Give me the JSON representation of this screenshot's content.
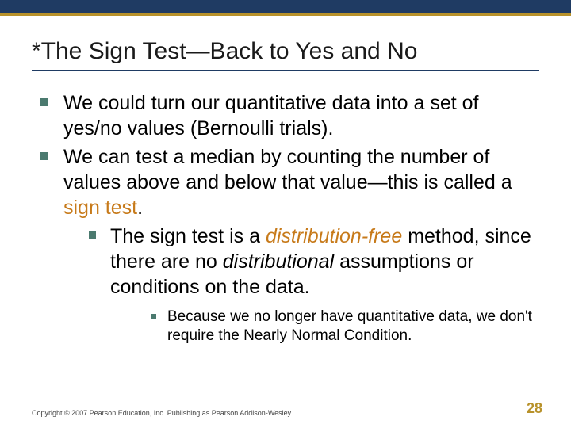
{
  "colors": {
    "topbar_bg": "#1f3b63",
    "topbar_accent": "#b8922b",
    "bullet_square": "#4b7a6f",
    "highlight": "#c77a1a",
    "pagenum": "#b8922b",
    "title_rule": "#1f3b63"
  },
  "title": "*The Sign Test—Back to Yes and No",
  "bullets": {
    "b1a": "We could turn our quantitative data into a set of yes/no values (Bernoulli trials).",
    "b1b_pre": "We can test a median by counting the number of values above and below that value—this is called a ",
    "b1b_hl": "sign test",
    "b1b_post": ".",
    "b2_pre": "The sign test is a ",
    "b2_hl": "distribution-free",
    "b2_mid": " method, since there are no ",
    "b2_it": "distributional",
    "b2_post": " assumptions or conditions on the data.",
    "b3": "Because we no longer have quantitative data, we don't require the Nearly Normal Condition."
  },
  "footer": "Copyright © 2007 Pearson Education, Inc. Publishing as Pearson Addison-Wesley",
  "pagenum": "28"
}
